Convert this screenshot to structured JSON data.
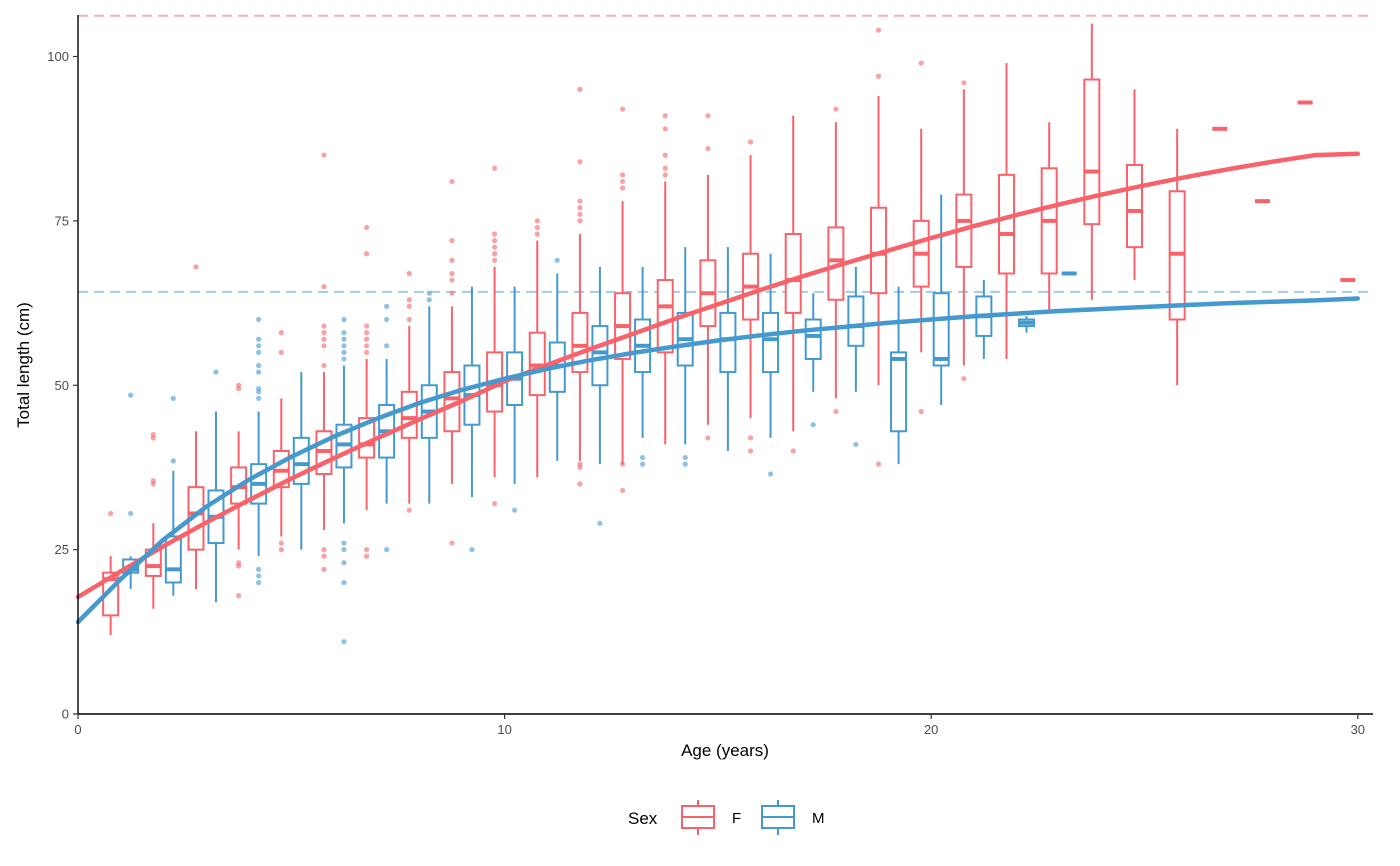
{
  "chart_data": {
    "type": "box",
    "xlabel": "Age (years)",
    "ylabel": "Total length (cm)",
    "xlim": [
      0,
      30.4
    ],
    "ylim": [
      0,
      106
    ],
    "x_ticks": [
      0,
      10,
      20,
      30
    ],
    "y_ticks": [
      0,
      25,
      50,
      75,
      100
    ],
    "grid": false,
    "legend": {
      "title": "Sex",
      "position": "bottom",
      "entries": [
        "F",
        "M"
      ]
    },
    "colors": {
      "F": "#F8626B",
      "M": "#4499CE"
    },
    "asymptotes": [
      {
        "series": "F",
        "y": 106.2
      },
      {
        "series": "M",
        "y": 64.2
      }
    ],
    "growth_curves": [
      {
        "series": "F",
        "x": [
          0,
          1,
          2,
          3,
          4,
          5,
          6,
          7,
          8,
          9,
          10,
          11,
          12,
          13,
          14,
          15,
          16,
          17,
          18,
          19,
          20,
          21,
          22,
          23,
          24,
          25,
          26,
          27,
          28,
          29,
          30
        ],
        "y": [
          17.8,
          21.7,
          25.5,
          29.1,
          32.5,
          35.8,
          38.9,
          41.9,
          44.8,
          47.6,
          50.6,
          53.1,
          55.5,
          57.8,
          60.1,
          62.3,
          64.5,
          66.6,
          68.6,
          70.5,
          72.4,
          74.2,
          75.9,
          77.5,
          79.0,
          80.4,
          81.7,
          82.9,
          84.0,
          85.0,
          85.2
        ]
      },
      {
        "series": "M",
        "x": [
          0,
          1,
          2,
          3,
          4,
          5,
          6,
          7,
          8,
          9,
          10,
          11,
          12,
          13,
          14,
          15,
          16,
          17,
          18,
          19,
          20,
          21,
          22,
          23,
          24,
          25,
          26,
          27,
          28,
          29,
          30
        ],
        "y": [
          14.0,
          20.5,
          26.5,
          31.5,
          35.6,
          39.1,
          42.2,
          44.9,
          47.3,
          49.3,
          51.0,
          52.5,
          53.8,
          54.9,
          55.9,
          56.8,
          57.6,
          58.3,
          58.9,
          59.5,
          60.0,
          60.5,
          60.9,
          61.3,
          61.6,
          61.9,
          62.2,
          62.5,
          62.7,
          62.9,
          63.2
        ]
      }
    ],
    "boxes": [
      {
        "series": "F",
        "age": 1,
        "median": 20.5,
        "q1": 15,
        "q3": 21.5,
        "lo": 12,
        "hi": 24,
        "outliers": [
          30.5
        ]
      },
      {
        "series": "M",
        "age": 1,
        "median": 22,
        "q1": 21.5,
        "q3": 23.5,
        "lo": 19,
        "hi": 24,
        "outliers": [
          30.5,
          48.5
        ]
      },
      {
        "series": "F",
        "age": 2,
        "median": 22.5,
        "q1": 21,
        "q3": 25,
        "lo": 16,
        "hi": 29,
        "outliers": [
          35,
          35.5,
          42,
          42.5
        ]
      },
      {
        "series": "M",
        "age": 2,
        "median": 22,
        "q1": 20,
        "q3": 27,
        "lo": 18,
        "hi": 37,
        "outliers": [
          38.5,
          48
        ]
      },
      {
        "series": "F",
        "age": 3,
        "median": 30.5,
        "q1": 25,
        "q3": 34.5,
        "lo": 19,
        "hi": 43,
        "outliers": [
          68
        ]
      },
      {
        "series": "M",
        "age": 3,
        "median": 30,
        "q1": 26,
        "q3": 34,
        "lo": 17,
        "hi": 46,
        "outliers": [
          52
        ]
      },
      {
        "series": "F",
        "age": 4,
        "median": 34.5,
        "q1": 32,
        "q3": 37.5,
        "lo": 25,
        "hi": 43,
        "outliers": [
          18,
          22.5,
          23,
          49.5,
          50
        ]
      },
      {
        "series": "M",
        "age": 4,
        "median": 35,
        "q1": 32,
        "q3": 38,
        "lo": 24,
        "hi": 46,
        "outliers": [
          20,
          21,
          22,
          48,
          49,
          49.5,
          52,
          53,
          55,
          56,
          57,
          60
        ]
      },
      {
        "series": "F",
        "age": 5,
        "median": 37,
        "q1": 34.5,
        "q3": 40,
        "lo": 27,
        "hi": 48,
        "outliers": [
          25,
          26,
          55,
          58
        ]
      },
      {
        "series": "M",
        "age": 5,
        "median": 38,
        "q1": 35,
        "q3": 42,
        "lo": 25,
        "hi": 52,
        "outliers": []
      },
      {
        "series": "F",
        "age": 6,
        "median": 40,
        "q1": 36.5,
        "q3": 43,
        "lo": 28,
        "hi": 52,
        "outliers": [
          22,
          24,
          25,
          53,
          56,
          57,
          58,
          59,
          65,
          85
        ]
      },
      {
        "series": "M",
        "age": 6,
        "median": 41,
        "q1": 37.5,
        "q3": 44,
        "lo": 29,
        "hi": 53,
        "outliers": [
          11,
          20,
          23,
          25,
          26,
          54,
          55,
          56,
          57,
          58,
          60
        ]
      },
      {
        "series": "F",
        "age": 7,
        "median": 41,
        "q1": 39,
        "q3": 45,
        "lo": 31,
        "hi": 54,
        "outliers": [
          24,
          25,
          55,
          56,
          57,
          58,
          59,
          70,
          74
        ]
      },
      {
        "series": "M",
        "age": 7,
        "median": 43,
        "q1": 39,
        "q3": 47,
        "lo": 32,
        "hi": 54,
        "outliers": [
          25,
          56,
          60,
          62
        ]
      },
      {
        "series": "F",
        "age": 8,
        "median": 45,
        "q1": 42,
        "q3": 49,
        "lo": 32,
        "hi": 59,
        "outliers": [
          31,
          60,
          62,
          63,
          67
        ]
      },
      {
        "series": "M",
        "age": 8,
        "median": 46,
        "q1": 42,
        "q3": 50,
        "lo": 32,
        "hi": 62,
        "outliers": [
          63,
          64
        ]
      },
      {
        "series": "F",
        "age": 9,
        "median": 48,
        "q1": 43,
        "q3": 52,
        "lo": 35,
        "hi": 62,
        "outliers": [
          26,
          64,
          66,
          67,
          69,
          72,
          81
        ]
      },
      {
        "series": "M",
        "age": 9,
        "median": 48.5,
        "q1": 44,
        "q3": 53,
        "lo": 33,
        "hi": 65,
        "outliers": [
          25
        ]
      },
      {
        "series": "F",
        "age": 10,
        "median": 50,
        "q1": 46,
        "q3": 55,
        "lo": 36,
        "hi": 68,
        "outliers": [
          32,
          69,
          70,
          71,
          72,
          73,
          83
        ]
      },
      {
        "series": "M",
        "age": 10,
        "median": 51,
        "q1": 47,
        "q3": 55,
        "lo": 35,
        "hi": 65,
        "outliers": [
          31
        ]
      },
      {
        "series": "F",
        "age": 11,
        "median": 53,
        "q1": 48.5,
        "q3": 58,
        "lo": 36,
        "hi": 72,
        "outliers": [
          73,
          74,
          75
        ]
      },
      {
        "series": "M",
        "age": 11,
        "median": 53,
        "q1": 49,
        "q3": 56.5,
        "lo": 38.5,
        "hi": 67,
        "outliers": [
          69
        ]
      },
      {
        "series": "F",
        "age": 12,
        "median": 56,
        "q1": 52,
        "q3": 61,
        "lo": 38.5,
        "hi": 73,
        "outliers": [
          35,
          37.5,
          38,
          75,
          76,
          77,
          78,
          84,
          95
        ]
      },
      {
        "series": "M",
        "age": 12,
        "median": 55,
        "q1": 50,
        "q3": 59,
        "lo": 38,
        "hi": 68,
        "outliers": [
          29
        ]
      },
      {
        "series": "F",
        "age": 13,
        "median": 59,
        "q1": 54,
        "q3": 64,
        "lo": 38,
        "hi": 78,
        "outliers": [
          34,
          38,
          80,
          81,
          82,
          92
        ]
      },
      {
        "series": "M",
        "age": 13,
        "median": 56,
        "q1": 52,
        "q3": 60,
        "lo": 42,
        "hi": 68,
        "outliers": [
          38,
          39
        ]
      },
      {
        "series": "F",
        "age": 14,
        "median": 62,
        "q1": 55,
        "q3": 66,
        "lo": 41,
        "hi": 81,
        "outliers": [
          82,
          83,
          85,
          89,
          91
        ]
      },
      {
        "series": "M",
        "age": 14,
        "median": 57,
        "q1": 53,
        "q3": 61,
        "lo": 41,
        "hi": 71,
        "outliers": [
          38,
          39
        ]
      },
      {
        "series": "F",
        "age": 15,
        "median": 64,
        "q1": 59,
        "q3": 69,
        "lo": 44,
        "hi": 82,
        "outliers": [
          42,
          86,
          91
        ]
      },
      {
        "series": "M",
        "age": 15,
        "median": 57,
        "q1": 52,
        "q3": 61,
        "lo": 40,
        "hi": 71,
        "outliers": []
      },
      {
        "series": "F",
        "age": 16,
        "median": 65,
        "q1": 60,
        "q3": 70,
        "lo": 45,
        "hi": 85,
        "outliers": [
          40,
          42,
          87
        ]
      },
      {
        "series": "M",
        "age": 16,
        "median": 57,
        "q1": 52,
        "q3": 61,
        "lo": 42,
        "hi": 70,
        "outliers": [
          36.5
        ]
      },
      {
        "series": "F",
        "age": 17,
        "median": 66,
        "q1": 61,
        "q3": 73,
        "lo": 43,
        "hi": 91,
        "outliers": [
          40
        ]
      },
      {
        "series": "M",
        "age": 17,
        "median": 57.5,
        "q1": 54,
        "q3": 60,
        "lo": 49,
        "hi": 64,
        "outliers": [
          44
        ]
      },
      {
        "series": "F",
        "age": 18,
        "median": 69,
        "q1": 63,
        "q3": 74,
        "lo": 48,
        "hi": 90,
        "outliers": [
          46,
          92
        ]
      },
      {
        "series": "M",
        "age": 18,
        "median": 59,
        "q1": 56,
        "q3": 63.5,
        "lo": 49,
        "hi": 68,
        "outliers": [
          41
        ]
      },
      {
        "series": "F",
        "age": 19,
        "median": 70,
        "q1": 64,
        "q3": 77,
        "lo": 50,
        "hi": 94,
        "outliers": [
          38,
          97,
          104
        ]
      },
      {
        "series": "M",
        "age": 19,
        "median": 54,
        "q1": 43,
        "q3": 55,
        "lo": 38,
        "hi": 65,
        "outliers": []
      },
      {
        "series": "F",
        "age": 20,
        "median": 70,
        "q1": 65,
        "q3": 75,
        "lo": 55,
        "hi": 89,
        "outliers": [
          46,
          99
        ]
      },
      {
        "series": "M",
        "age": 20,
        "median": 54,
        "q1": 53,
        "q3": 64,
        "lo": 47,
        "hi": 79,
        "outliers": []
      },
      {
        "series": "F",
        "age": 21,
        "median": 75,
        "q1": 68,
        "q3": 79,
        "lo": 53,
        "hi": 95,
        "outliers": [
          51,
          96
        ]
      },
      {
        "series": "M",
        "age": 21,
        "median": 60.5,
        "q1": 57.5,
        "q3": 63.5,
        "lo": 54,
        "hi": 66,
        "outliers": []
      },
      {
        "series": "F",
        "age": 22,
        "median": 73,
        "q1": 67,
        "q3": 82,
        "lo": 54,
        "hi": 99,
        "outliers": []
      },
      {
        "series": "M",
        "age": 22,
        "median": 59.5,
        "q1": 59,
        "q3": 60,
        "lo": 58,
        "hi": 60.5,
        "outliers": []
      },
      {
        "series": "F",
        "age": 23,
        "median": 75,
        "q1": 67,
        "q3": 83,
        "lo": 61,
        "hi": 90,
        "outliers": []
      },
      {
        "series": "M",
        "age": 23,
        "median": 67,
        "q1": 67,
        "q3": 67,
        "lo": 67,
        "hi": 67,
        "outliers": []
      },
      {
        "series": "F",
        "age": 24,
        "median": 82.5,
        "q1": 74.5,
        "q3": 96.5,
        "lo": 63,
        "hi": 105,
        "outliers": []
      },
      {
        "series": "F",
        "age": 25,
        "median": 76.5,
        "q1": 71,
        "q3": 83.5,
        "lo": 66,
        "hi": 95,
        "outliers": []
      },
      {
        "series": "F",
        "age": 26,
        "median": 70,
        "q1": 60,
        "q3": 79.5,
        "lo": 50,
        "hi": 89,
        "outliers": []
      },
      {
        "series": "F",
        "age": 27,
        "median": 89,
        "q1": 89,
        "q3": 89,
        "lo": 89,
        "hi": 89,
        "outliers": []
      },
      {
        "series": "F",
        "age": 28,
        "median": 78,
        "q1": 78,
        "q3": 78,
        "lo": 78,
        "hi": 78,
        "outliers": []
      },
      {
        "series": "F",
        "age": 29,
        "median": 93,
        "q1": 93,
        "q3": 93,
        "lo": 93,
        "hi": 93,
        "outliers": []
      },
      {
        "series": "F",
        "age": 30,
        "median": 66,
        "q1": 66,
        "q3": 66,
        "lo": 66,
        "hi": 66,
        "outliers": []
      }
    ]
  }
}
